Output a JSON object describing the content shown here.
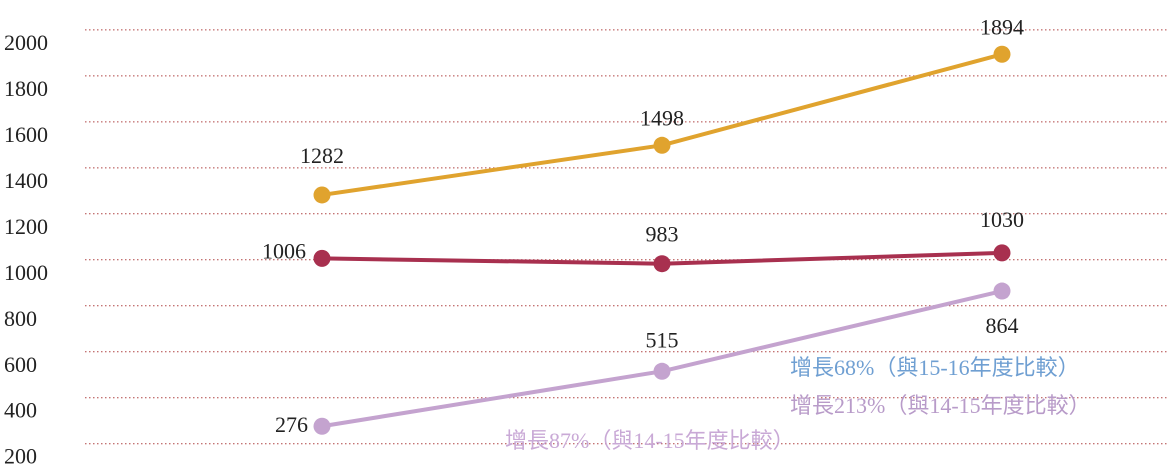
{
  "chart_data": {
    "type": "line",
    "categories": [
      null,
      null,
      null
    ],
    "series": [
      {
        "name": null,
        "color": "#e0a32e",
        "values": [
          1282,
          1498,
          1894
        ]
      },
      {
        "name": null,
        "color": "#a8304f",
        "values": [
          1006,
          983,
          1030
        ]
      },
      {
        "name": null,
        "color": "#c4a3cf",
        "values": [
          276,
          515,
          864
        ]
      }
    ],
    "ylim": [
      90,
      2130
    ],
    "yticks": [
      200,
      400,
      600,
      800,
      1000,
      1200,
      1400,
      1600,
      1800,
      2000
    ],
    "grid": true,
    "annotations": [
      {
        "text": "增長68%（與15-16年度比較）",
        "color": "#6f9fd2"
      },
      {
        "text": "增長213%（與14-15年度比較）",
        "color": "#b89bc9"
      },
      {
        "text": "增長87%（與14-15年度比較）",
        "color": "#c9a9d6"
      }
    ]
  }
}
